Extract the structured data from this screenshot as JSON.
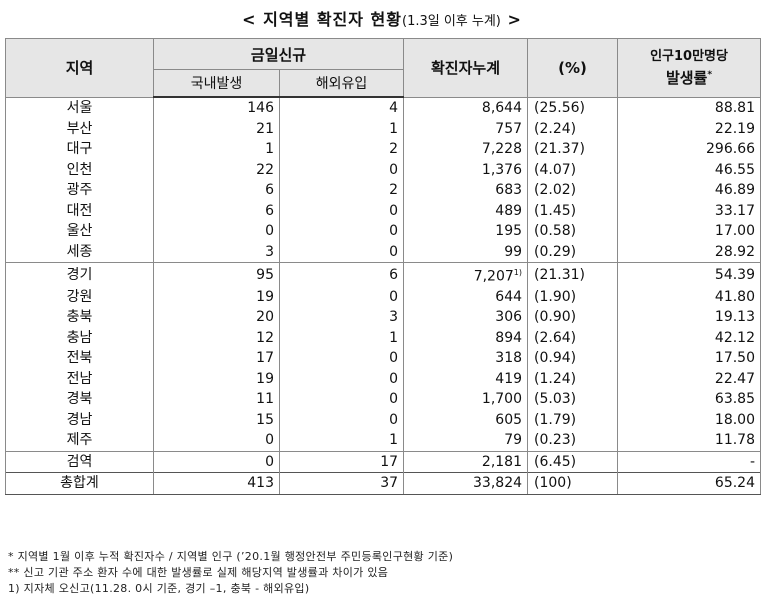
{
  "title": {
    "main": "< 지역별 확진자 현황",
    "sub": "(1.3일 이후 누계)",
    "close": " >"
  },
  "headers": {
    "region": "지역",
    "today_new": "금일신규",
    "domestic": "국내발생",
    "overseas": "해외유입",
    "cumulative": "확진자누계",
    "percent": "(%)",
    "per_100k_line1": "인구10만명당",
    "per_100k_line2": "발생률",
    "per_100k_mark": "*"
  },
  "rows": [
    {
      "region": "서울",
      "domestic": "146",
      "overseas": "4",
      "cumulative": "8,644",
      "note": "",
      "percent": "(25.56)",
      "rate": "88.81"
    },
    {
      "region": "부산",
      "domestic": "21",
      "overseas": "1",
      "cumulative": "757",
      "note": "",
      "percent": "(2.24)",
      "rate": "22.19"
    },
    {
      "region": "대구",
      "domestic": "1",
      "overseas": "2",
      "cumulative": "7,228",
      "note": "",
      "percent": "(21.37)",
      "rate": "296.66"
    },
    {
      "region": "인천",
      "domestic": "22",
      "overseas": "0",
      "cumulative": "1,376",
      "note": "",
      "percent": "(4.07)",
      "rate": "46.55"
    },
    {
      "region": "광주",
      "domestic": "6",
      "overseas": "2",
      "cumulative": "683",
      "note": "",
      "percent": "(2.02)",
      "rate": "46.89"
    },
    {
      "region": "대전",
      "domestic": "6",
      "overseas": "0",
      "cumulative": "489",
      "note": "",
      "percent": "(1.45)",
      "rate": "33.17"
    },
    {
      "region": "울산",
      "domestic": "0",
      "overseas": "0",
      "cumulative": "195",
      "note": "",
      "percent": "(0.58)",
      "rate": "17.00"
    },
    {
      "region": "세종",
      "domestic": "3",
      "overseas": "0",
      "cumulative": "99",
      "note": "",
      "percent": "(0.29)",
      "rate": "28.92"
    },
    {
      "region": "경기",
      "domestic": "95",
      "overseas": "6",
      "cumulative": "7,207",
      "note": "1)",
      "percent": "(21.31)",
      "rate": "54.39"
    },
    {
      "region": "강원",
      "domestic": "19",
      "overseas": "0",
      "cumulative": "644",
      "note": "",
      "percent": "(1.90)",
      "rate": "41.80"
    },
    {
      "region": "충북",
      "domestic": "20",
      "overseas": "3",
      "cumulative": "306",
      "note": "",
      "percent": "(0.90)",
      "rate": "19.13"
    },
    {
      "region": "충남",
      "domestic": "12",
      "overseas": "1",
      "cumulative": "894",
      "note": "",
      "percent": "(2.64)",
      "rate": "42.12"
    },
    {
      "region": "전북",
      "domestic": "17",
      "overseas": "0",
      "cumulative": "318",
      "note": "",
      "percent": "(0.94)",
      "rate": "17.50"
    },
    {
      "region": "전남",
      "domestic": "19",
      "overseas": "0",
      "cumulative": "419",
      "note": "",
      "percent": "(1.24)",
      "rate": "22.47"
    },
    {
      "region": "경북",
      "domestic": "11",
      "overseas": "0",
      "cumulative": "1,700",
      "note": "",
      "percent": "(5.03)",
      "rate": "63.85"
    },
    {
      "region": "경남",
      "domestic": "15",
      "overseas": "0",
      "cumulative": "605",
      "note": "",
      "percent": "(1.79)",
      "rate": "18.00"
    },
    {
      "region": "제주",
      "domestic": "0",
      "overseas": "1",
      "cumulative": "79",
      "note": "",
      "percent": "(0.23)",
      "rate": "11.78"
    },
    {
      "region": "검역",
      "domestic": "0",
      "overseas": "17",
      "cumulative": "2,181",
      "note": "",
      "percent": "(6.45)",
      "rate": "-"
    },
    {
      "region": "총합계",
      "domestic": "413",
      "overseas": "37",
      "cumulative": "33,824",
      "note": "",
      "percent": "(100)",
      "rate": "65.24"
    }
  ],
  "footnotes": [
    "* 지역별 1월 이후 누적 확진자수 / 지역별 인구 (’20.1월 행정안전부 주민등록인구현황 기준)",
    "** 신고 기관 주소 환자 수에 대한 발생률로 실제 해당지역 발생률과 차이가 있음",
    "1) 지자체 오신고(11.28. 0시 기준, 경기 –1, 충북 - 해외유입)"
  ]
}
